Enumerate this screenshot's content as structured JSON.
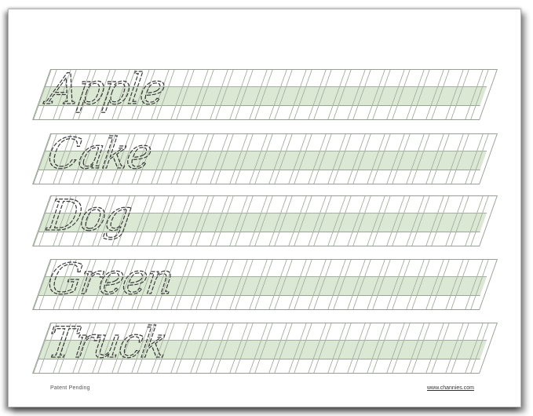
{
  "rows": [
    {
      "word": "Apple"
    },
    {
      "word": "Cake"
    },
    {
      "word": "Dog"
    },
    {
      "word": "Green"
    },
    {
      "word": "Truck"
    }
  ],
  "footer": {
    "patent_text": "Patent Pending",
    "website": "www.channies.com"
  },
  "colors": {
    "band_green": "#dbe8d4",
    "guide_line": "#a9b2a4",
    "row_border": "#97a193",
    "letter_stroke": "#3c3c3c"
  }
}
